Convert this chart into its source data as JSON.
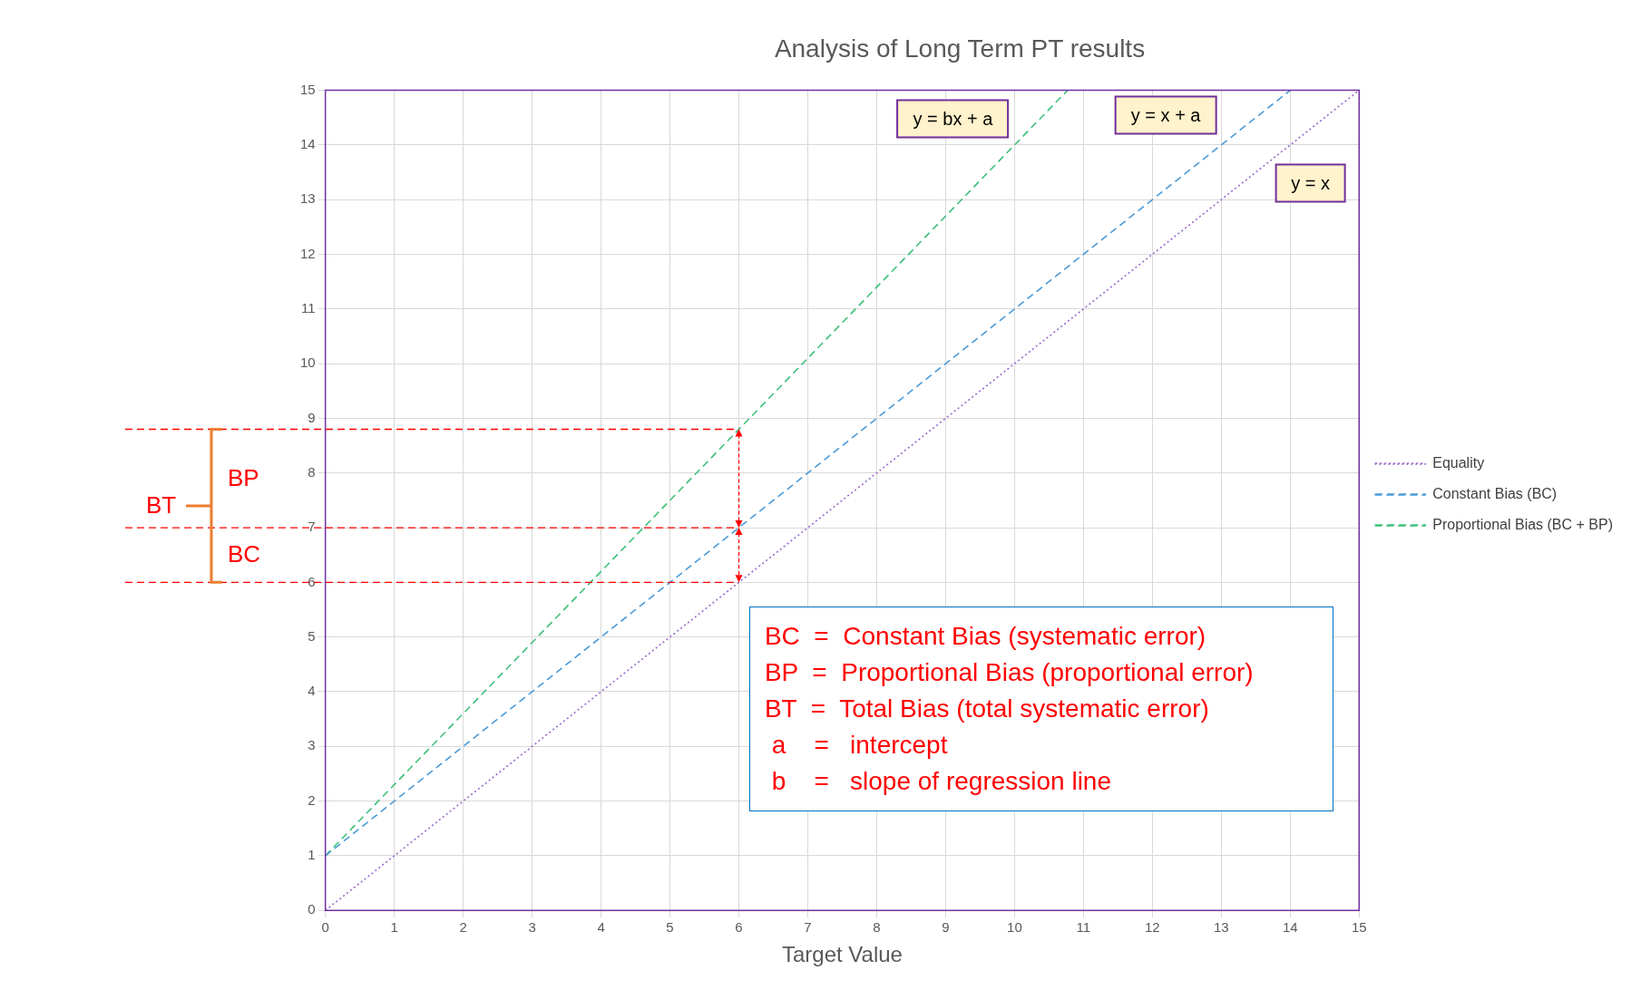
{
  "chart_data": {
    "type": "line",
    "title": "Analysis of Long Term PT results",
    "xlabel": "Target Value",
    "xlim": [
      0,
      15
    ],
    "xticks": [
      0,
      1,
      2,
      3,
      4,
      5,
      6,
      7,
      8,
      9,
      10,
      11,
      12,
      13,
      14,
      15
    ],
    "ylim": [
      0,
      15
    ],
    "yticks": [
      0,
      1,
      2,
      3,
      4,
      5,
      6,
      7,
      8,
      9,
      10,
      11,
      12,
      13,
      14,
      15
    ],
    "grid": true,
    "legend": "right",
    "marker": "none",
    "series": [
      {
        "name": "Equality",
        "color": "#9966cc",
        "line_style": "dotted",
        "x": [
          0,
          15
        ],
        "values": [
          0,
          15
        ]
      },
      {
        "name": "Constant Bias (BC)",
        "color": "#4a9ad8",
        "line_style": "dashed",
        "x": [
          0,
          14
        ],
        "values": [
          1,
          15
        ]
      },
      {
        "name": "Proportional Bias (BC + BP)",
        "color": "#3cc07a",
        "line_style": "dashed",
        "x": [
          0,
          10.77
        ],
        "values": [
          1,
          15
        ]
      }
    ],
    "ref_lines": [
      {
        "axis": "y",
        "value": 8.8,
        "color": "#ff0000",
        "line_style": "dashed"
      },
      {
        "axis": "y",
        "value": 7,
        "color": "#ff0000",
        "line_style": "dashed"
      },
      {
        "axis": "y",
        "value": 6,
        "color": "#ff0000",
        "line_style": "dashed"
      }
    ],
    "annotations": [
      "BP",
      "BC",
      "BT",
      "y = bx + a",
      "y = x + a",
      "y = x",
      "BC  =  Constant Bias (systematic error)",
      "BP  =  Proportional Bias (proportional error)",
      "BT  =  Total Bias (total systematic error)",
      " a    =   intercept",
      " b    =   slope of regression line"
    ]
  }
}
